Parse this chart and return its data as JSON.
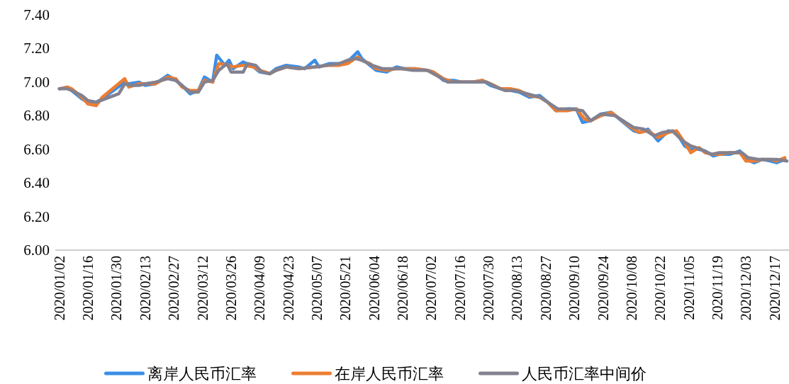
{
  "chart_data": {
    "type": "line",
    "ylim": [
      6.0,
      7.4
    ],
    "yticks": [
      {
        "value": 6.0,
        "label": "6.00"
      },
      {
        "value": 6.2,
        "label": "6.20"
      },
      {
        "value": 6.4,
        "label": "6.40"
      },
      {
        "value": 6.6,
        "label": "6.60"
      },
      {
        "value": 6.8,
        "label": "6.80"
      },
      {
        "value": 7.0,
        "label": "7.00"
      },
      {
        "value": 7.2,
        "label": "7.20"
      },
      {
        "value": 7.4,
        "label": "7.40"
      }
    ],
    "xlim": [
      "2019-12-31",
      "2020-12-23"
    ],
    "xticks": [
      {
        "value": "2020-01-02",
        "label": "2020/01/02"
      },
      {
        "value": "2020-01-16",
        "label": "2020/01/16"
      },
      {
        "value": "2020-01-30",
        "label": "2020/01/30"
      },
      {
        "value": "2020-02-13",
        "label": "2020/02/13"
      },
      {
        "value": "2020-02-27",
        "label": "2020/02/27"
      },
      {
        "value": "2020-03-12",
        "label": "2020/03/12"
      },
      {
        "value": "2020-03-26",
        "label": "2020/03/26"
      },
      {
        "value": "2020-04-09",
        "label": "2020/04/09"
      },
      {
        "value": "2020-04-23",
        "label": "2020/04/23"
      },
      {
        "value": "2020-05-07",
        "label": "2020/05/07"
      },
      {
        "value": "2020-05-21",
        "label": "2020/05/21"
      },
      {
        "value": "2020-06-04",
        "label": "2020/06/04"
      },
      {
        "value": "2020-06-18",
        "label": "2020/06/18"
      },
      {
        "value": "2020-07-02",
        "label": "2020/07/02"
      },
      {
        "value": "2020-07-16",
        "label": "2020/07/16"
      },
      {
        "value": "2020-07-30",
        "label": "2020/07/30"
      },
      {
        "value": "2020-08-13",
        "label": "2020/08/13"
      },
      {
        "value": "2020-08-27",
        "label": "2020/08/27"
      },
      {
        "value": "2020-09-10",
        "label": "2020/09/10"
      },
      {
        "value": "2020-09-24",
        "label": "2020/09/24"
      },
      {
        "value": "2020-10-08",
        "label": "2020/10/08"
      },
      {
        "value": "2020-10-22",
        "label": "2020/10/22"
      },
      {
        "value": "2020-11-05",
        "label": "2020/11/05"
      },
      {
        "value": "2020-11-19",
        "label": "2020/11/19"
      },
      {
        "value": "2020-12-03",
        "label": "2020/12/03"
      },
      {
        "value": "2020-12-17",
        "label": "2020/12/17"
      }
    ],
    "legend": "bottom",
    "series": [
      {
        "name": "离岸人民币汇率",
        "color": "#3a8ee6",
        "x": [
          "2020-01-02",
          "2020-01-06",
          "2020-01-08",
          "2020-01-13",
          "2020-01-16",
          "2020-01-20",
          "2020-01-23",
          "2020-02-03",
          "2020-02-05",
          "2020-02-10",
          "2020-02-13",
          "2020-02-18",
          "2020-02-24",
          "2020-02-28",
          "2020-03-02",
          "2020-03-06",
          "2020-03-10",
          "2020-03-13",
          "2020-03-17",
          "2020-03-19",
          "2020-03-23",
          "2020-03-25",
          "2020-03-27",
          "2020-04-01",
          "2020-04-06",
          "2020-04-09",
          "2020-04-14",
          "2020-04-17",
          "2020-04-22",
          "2020-04-28",
          "2020-05-01",
          "2020-05-06",
          "2020-05-08",
          "2020-05-13",
          "2020-05-18",
          "2020-05-22",
          "2020-05-27",
          "2020-05-29",
          "2020-06-02",
          "2020-06-05",
          "2020-06-10",
          "2020-06-15",
          "2020-06-19",
          "2020-06-24",
          "2020-06-30",
          "2020-07-03",
          "2020-07-08",
          "2020-07-13",
          "2020-07-17",
          "2020-07-22",
          "2020-07-27",
          "2020-07-31",
          "2020-08-05",
          "2020-08-10",
          "2020-08-14",
          "2020-08-19",
          "2020-08-24",
          "2020-08-28",
          "2020-09-01",
          "2020-09-07",
          "2020-09-11",
          "2020-09-14",
          "2020-09-18",
          "2020-09-23",
          "2020-09-28",
          "2020-10-09",
          "2020-10-12",
          "2020-10-16",
          "2020-10-21",
          "2020-10-26",
          "2020-10-30",
          "2020-11-03",
          "2020-11-06",
          "2020-11-10",
          "2020-11-13",
          "2020-11-17",
          "2020-11-20",
          "2020-11-25",
          "2020-11-30",
          "2020-12-03",
          "2020-12-07",
          "2020-12-11",
          "2020-12-15",
          "2020-12-18",
          "2020-12-22"
        ],
        "values": [
          6.96,
          6.97,
          6.95,
          6.9,
          6.88,
          6.88,
          6.9,
          7.0,
          6.99,
          7.0,
          6.98,
          6.99,
          7.04,
          7.01,
          6.98,
          6.93,
          6.95,
          7.03,
          7.0,
          7.16,
          7.1,
          7.13,
          7.08,
          7.12,
          7.09,
          7.06,
          7.05,
          7.08,
          7.1,
          7.09,
          7.08,
          7.13,
          7.09,
          7.11,
          7.11,
          7.12,
          7.18,
          7.14,
          7.1,
          7.07,
          7.06,
          7.09,
          7.08,
          7.08,
          7.07,
          7.06,
          7.01,
          7.01,
          7.0,
          7.0,
          7.01,
          6.98,
          6.96,
          6.95,
          6.94,
          6.91,
          6.92,
          6.88,
          6.83,
          6.84,
          6.84,
          6.76,
          6.77,
          6.81,
          6.82,
          6.71,
          6.7,
          6.72,
          6.65,
          6.71,
          6.7,
          6.62,
          6.6,
          6.6,
          6.59,
          6.56,
          6.57,
          6.57,
          6.59,
          6.54,
          6.52,
          6.54,
          6.53,
          6.52,
          6.54
        ]
      },
      {
        "name": "在岸人民币汇率",
        "color": "#ed7d31",
        "x": [
          "2020-01-02",
          "2020-01-06",
          "2020-01-08",
          "2020-01-13",
          "2020-01-16",
          "2020-01-20",
          "2020-01-23",
          "2020-02-03",
          "2020-02-05",
          "2020-02-10",
          "2020-02-13",
          "2020-02-18",
          "2020-02-24",
          "2020-02-28",
          "2020-03-02",
          "2020-03-06",
          "2020-03-10",
          "2020-03-13",
          "2020-03-17",
          "2020-03-20",
          "2020-03-25",
          "2020-03-27",
          "2020-04-01",
          "2020-04-06",
          "2020-04-09",
          "2020-04-14",
          "2020-04-17",
          "2020-04-22",
          "2020-04-28",
          "2020-05-06",
          "2020-05-13",
          "2020-05-18",
          "2020-05-22",
          "2020-05-27",
          "2020-05-29",
          "2020-06-02",
          "2020-06-05",
          "2020-06-10",
          "2020-06-15",
          "2020-06-19",
          "2020-06-24",
          "2020-06-30",
          "2020-07-03",
          "2020-07-08",
          "2020-07-13",
          "2020-07-17",
          "2020-07-22",
          "2020-07-27",
          "2020-07-31",
          "2020-08-05",
          "2020-08-10",
          "2020-08-14",
          "2020-08-19",
          "2020-08-24",
          "2020-08-28",
          "2020-09-01",
          "2020-09-07",
          "2020-09-11",
          "2020-09-15",
          "2020-09-18",
          "2020-09-23",
          "2020-09-28",
          "2020-10-09",
          "2020-10-12",
          "2020-10-16",
          "2020-10-21",
          "2020-10-26",
          "2020-10-30",
          "2020-11-03",
          "2020-11-06",
          "2020-11-10",
          "2020-11-13",
          "2020-11-17",
          "2020-11-20",
          "2020-11-25",
          "2020-11-30",
          "2020-12-03",
          "2020-12-07",
          "2020-12-11",
          "2020-12-15",
          "2020-12-18",
          "2020-12-22"
        ],
        "values": [
          6.96,
          6.97,
          6.96,
          6.91,
          6.87,
          6.86,
          6.91,
          7.02,
          6.97,
          6.99,
          6.99,
          6.99,
          7.03,
          7.02,
          6.97,
          6.95,
          6.95,
          7.01,
          7.0,
          7.11,
          7.1,
          7.09,
          7.1,
          7.09,
          7.07,
          7.05,
          7.07,
          7.09,
          7.08,
          7.09,
          7.1,
          7.1,
          7.11,
          7.15,
          7.13,
          7.11,
          7.08,
          7.07,
          7.08,
          7.08,
          7.08,
          7.07,
          7.06,
          7.02,
          7.0,
          7.0,
          7.0,
          7.01,
          6.99,
          6.96,
          6.96,
          6.95,
          6.92,
          6.91,
          6.88,
          6.83,
          6.83,
          6.84,
          6.78,
          6.77,
          6.8,
          6.82,
          6.72,
          6.7,
          6.71,
          6.67,
          6.7,
          6.71,
          6.64,
          6.58,
          6.61,
          6.58,
          6.57,
          6.57,
          6.58,
          6.58,
          6.53,
          6.53,
          6.54,
          6.54,
          6.53,
          6.55
        ]
      },
      {
        "name": "人民币汇率中间价",
        "color": "#83818f",
        "x": [
          "2020-01-02",
          "2020-01-06",
          "2020-01-08",
          "2020-01-13",
          "2020-01-16",
          "2020-01-20",
          "2020-01-31",
          "2020-02-03",
          "2020-02-06",
          "2020-02-10",
          "2020-02-13",
          "2020-02-18",
          "2020-02-24",
          "2020-02-28",
          "2020-03-03",
          "2020-03-06",
          "2020-03-10",
          "2020-03-13",
          "2020-03-17",
          "2020-03-20",
          "2020-03-24",
          "2020-03-26",
          "2020-04-01",
          "2020-04-03",
          "2020-04-07",
          "2020-04-10",
          "2020-04-14",
          "2020-04-17",
          "2020-04-22",
          "2020-04-28",
          "2020-05-06",
          "2020-05-12",
          "2020-05-18",
          "2020-05-22",
          "2020-05-26",
          "2020-05-29",
          "2020-06-03",
          "2020-06-08",
          "2020-06-12",
          "2020-06-17",
          "2020-06-23",
          "2020-06-30",
          "2020-07-06",
          "2020-07-10",
          "2020-07-15",
          "2020-07-20",
          "2020-07-24",
          "2020-07-29",
          "2020-08-03",
          "2020-08-07",
          "2020-08-12",
          "2020-08-18",
          "2020-08-24",
          "2020-08-28",
          "2020-09-02",
          "2020-09-08",
          "2020-09-14",
          "2020-09-18",
          "2020-09-23",
          "2020-09-30",
          "2020-10-09",
          "2020-10-14",
          "2020-10-19",
          "2020-10-23",
          "2020-10-28",
          "2020-11-02",
          "2020-11-06",
          "2020-11-11",
          "2020-11-16",
          "2020-11-20",
          "2020-11-26",
          "2020-12-01",
          "2020-12-04",
          "2020-12-09",
          "2020-12-14",
          "2020-12-18",
          "2020-12-23"
        ],
        "values": [
          6.96,
          6.96,
          6.95,
          6.92,
          6.89,
          6.88,
          6.93,
          6.99,
          6.98,
          6.98,
          6.99,
          7.0,
          7.02,
          7.01,
          6.97,
          6.94,
          6.94,
          7.0,
          7.01,
          7.07,
          7.11,
          7.06,
          7.06,
          7.11,
          7.1,
          7.06,
          7.05,
          7.07,
          7.09,
          7.08,
          7.09,
          7.1,
          7.11,
          7.13,
          7.14,
          7.13,
          7.1,
          7.08,
          7.08,
          7.08,
          7.07,
          7.07,
          7.03,
          7.0,
          7.0,
          7.0,
          7.0,
          7.0,
          6.97,
          6.95,
          6.95,
          6.93,
          6.91,
          6.88,
          6.84,
          6.84,
          6.83,
          6.77,
          6.81,
          6.8,
          6.73,
          6.72,
          6.68,
          6.7,
          6.71,
          6.65,
          6.62,
          6.6,
          6.57,
          6.58,
          6.58,
          6.58,
          6.55,
          6.54,
          6.54,
          6.54,
          6.53
        ]
      }
    ]
  }
}
